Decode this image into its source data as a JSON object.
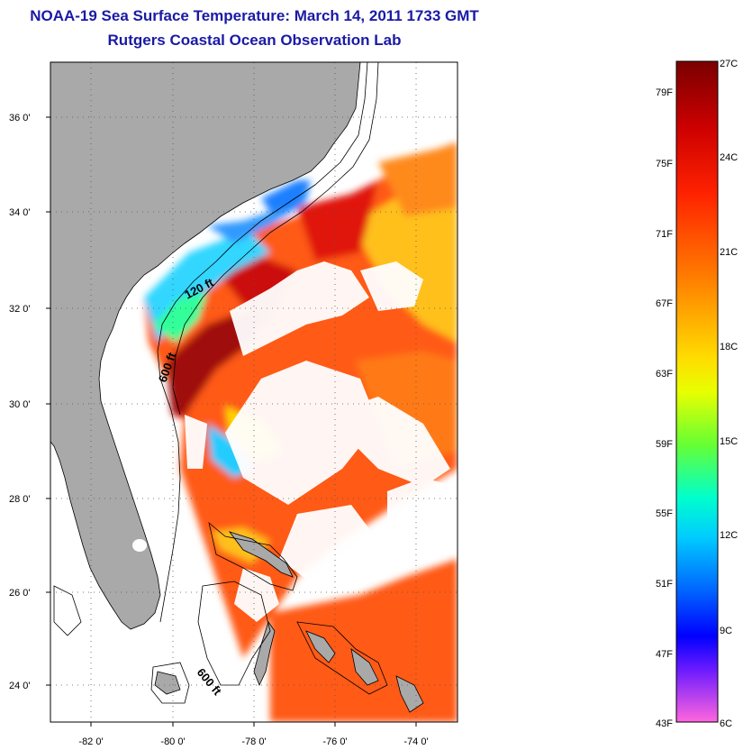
{
  "header": {
    "title": "NOAA-19 Sea Surface Temperature:  March 14, 2011 1733 GMT",
    "subtitle": "Rutgers Coastal Ocean Observation Lab"
  },
  "map": {
    "lon_ticks": [
      "-82 0'",
      "-80 0'",
      "-78 0'",
      "-76 0'",
      "-74 0'"
    ],
    "lat_ticks": [
      "36 0'",
      "34 0'",
      "32 0'",
      "30 0'",
      "28 0'",
      "26 0'",
      "24 0'"
    ],
    "lon_range": [
      -83,
      -73
    ],
    "lat_range": [
      23,
      37
    ],
    "grid": "dotted",
    "contour_labels": [
      "120 ft",
      "600 ft",
      "600 ft"
    ],
    "land_color": "#a9a9a9",
    "cloud_color": "#ffffff"
  },
  "colorbar": {
    "celsius_labels": [
      "27C",
      "24C",
      "21C",
      "18C",
      "15C",
      "12C",
      "9C",
      "6C"
    ],
    "fahrenheit_labels": [
      "79F",
      "75F",
      "71F",
      "67F",
      "63F",
      "59F",
      "55F",
      "51F",
      "47F",
      "43F"
    ],
    "range_c": [
      6,
      27
    ],
    "colors": [
      "#8b0000",
      "#ff0000",
      "#ff7f00",
      "#ffff00",
      "#00ff7f",
      "#00ffff",
      "#0000ff",
      "#8000ff",
      "#ff66cc"
    ]
  }
}
